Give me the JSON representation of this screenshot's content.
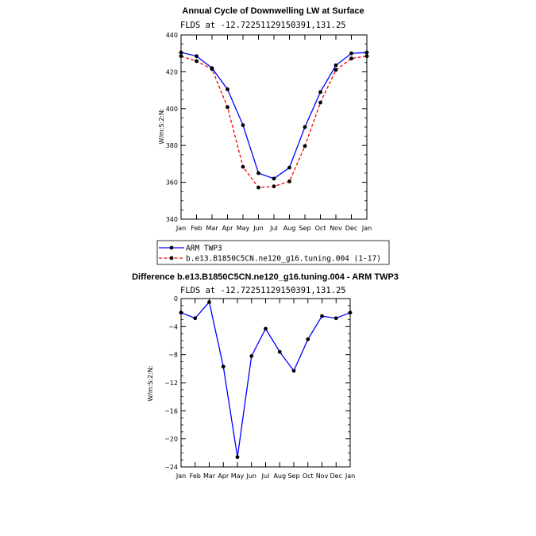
{
  "chart_data": [
    {
      "type": "line",
      "title": "Annual Cycle of Downwelling LW at Surface",
      "subtitle": "FLDS at -12.72251129150391,131.25",
      "xlabel": "",
      "ylabel": "W/m:S:2:N:",
      "categories": [
        "Jan",
        "Feb",
        "Mar",
        "Apr",
        "May",
        "Jun",
        "Jul",
        "Aug",
        "Sep",
        "Oct",
        "Nov",
        "Dec",
        "Jan"
      ],
      "ylim": [
        340,
        440
      ],
      "yticks": [
        340,
        360,
        380,
        400,
        420,
        440
      ],
      "series": [
        {
          "name": "ARM TWP3",
          "color": "#0000ff",
          "dash": "solid",
          "values": [
            430.5,
            428.5,
            422.0,
            410.5,
            391.0,
            365.0,
            362.0,
            368.0,
            390.0,
            409.0,
            423.5,
            430.0,
            430.5
          ]
        },
        {
          "name": "b.e13.B1850C5CN.ne120_g16.tuning.004 (1-17)",
          "color": "#ff0000",
          "dash": "dashed",
          "values": [
            428.5,
            425.8,
            421.5,
            400.8,
            368.4,
            357.2,
            357.8,
            360.5,
            379.7,
            403.3,
            421.0,
            427.2,
            428.5
          ]
        }
      ],
      "legend": "bottom"
    },
    {
      "type": "line",
      "title": "Difference b.e13.B1850C5CN.ne120_g16.tuning.004 - ARM TWP3",
      "subtitle": "FLDS at -12.72251129150391,131.25",
      "xlabel": "",
      "ylabel": "W/m:S:2:N:",
      "categories": [
        "Jan",
        "Feb",
        "Mar",
        "Apr",
        "May",
        "Jun",
        "Jul",
        "Aug",
        "Sep",
        "Oct",
        "Nov",
        "Dec",
        "Jan"
      ],
      "ylim": [
        -24,
        0
      ],
      "yticks": [
        -24,
        -20,
        -16,
        -12,
        -8,
        -4,
        0
      ],
      "series": [
        {
          "name": "Difference",
          "color": "#0000ff",
          "dash": "solid",
          "values": [
            -2.0,
            -2.8,
            -0.5,
            -9.7,
            -22.6,
            -8.2,
            -4.3,
            -7.6,
            -10.3,
            -5.8,
            -2.5,
            -2.8,
            -2.0
          ]
        }
      ]
    }
  ]
}
